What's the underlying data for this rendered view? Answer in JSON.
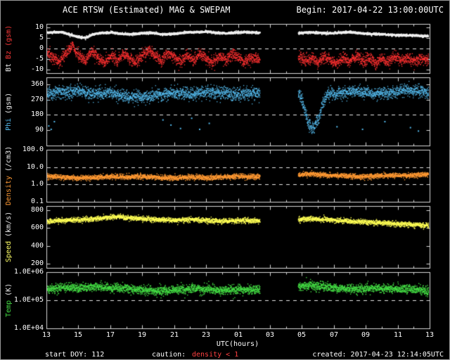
{
  "header": {
    "title": "ACE RTSW (Estimated) MAG & SWEPAM",
    "begin": "Begin: 2017-04-22 13:00:00UTC"
  },
  "footer": {
    "start_doy": "start DOY: 112",
    "caution_label": "caution:",
    "caution_value": "density < 1",
    "created": "created: 2017-04-23 12:14:05UTC"
  },
  "colors": {
    "background": "#000000",
    "frame": "#9a9a9a",
    "axis": "#d8d8d8",
    "dashed": "#e8e8e8",
    "caution": "#ff4040"
  },
  "x_axis": {
    "label": "UTC(hours)",
    "range": [
      13,
      37
    ],
    "gap": [
      26.35,
      28.75
    ],
    "tick_hours": [
      13,
      15,
      17,
      19,
      21,
      23,
      25,
      27,
      29,
      31,
      33,
      35,
      37
    ],
    "tick_labels": [
      "13",
      "15",
      "17",
      "19",
      "21",
      "23",
      "01",
      "03",
      "05",
      "07",
      "09",
      "11",
      "13"
    ]
  },
  "chart_data": [
    {
      "name": "bt-bz",
      "type": "scatter",
      "scale": "linear",
      "yrange": [
        -11.5,
        11.5
      ],
      "yticks": [
        {
          "v": 10,
          "label": "10"
        },
        {
          "v": 5,
          "label": "5"
        },
        {
          "v": 0,
          "label": "0"
        },
        {
          "v": -5,
          "label": "-5"
        },
        {
          "v": -10,
          "label": "-10"
        }
      ],
      "dashed_at": [
        0
      ],
      "ylabel_parts": [
        {
          "text": "Bt",
          "color": "#eeeeee"
        },
        {
          "text": "Bz (gsm)",
          "color": "#ff3838"
        }
      ],
      "series": [
        {
          "name": "Bz",
          "color": "#ff3030",
          "noise": 1.3,
          "size": 1.3,
          "points": [
            [
              13,
              -1.5
            ],
            [
              13.4,
              -4.5
            ],
            [
              13.8,
              -6
            ],
            [
              14.2,
              -2.5
            ],
            [
              14.6,
              1.5
            ],
            [
              15,
              -3
            ],
            [
              15.4,
              -5.5
            ],
            [
              15.8,
              -1
            ],
            [
              16.2,
              -4
            ],
            [
              16.6,
              -6.5
            ],
            [
              17,
              -3
            ],
            [
              17.4,
              -5.5
            ],
            [
              17.8,
              -2
            ],
            [
              18.2,
              -4.5
            ],
            [
              18.6,
              -6
            ],
            [
              19,
              -2.5
            ],
            [
              19.4,
              -0.5
            ],
            [
              19.8,
              -3.5
            ],
            [
              20.2,
              -5.5
            ],
            [
              20.6,
              -2
            ],
            [
              21,
              -4
            ],
            [
              21.4,
              -6
            ],
            [
              21.8,
              -3
            ],
            [
              22.2,
              -5
            ],
            [
              22.6,
              -2
            ],
            [
              23,
              -4.5
            ],
            [
              23.4,
              -6.5
            ],
            [
              23.8,
              -3
            ],
            [
              24.2,
              -5
            ],
            [
              24.6,
              -2.5
            ],
            [
              25,
              -4
            ],
            [
              25.4,
              -6
            ],
            [
              25.8,
              -3.5
            ],
            [
              26.3,
              -5
            ],
            [
              28.8,
              -3.5
            ],
            [
              29.2,
              -6
            ],
            [
              29.6,
              -4
            ],
            [
              30,
              -6.5
            ],
            [
              30.4,
              -3.5
            ],
            [
              30.8,
              -5.5
            ],
            [
              31.2,
              -7
            ],
            [
              31.6,
              -4
            ],
            [
              32,
              -6
            ],
            [
              32.4,
              -3.5
            ],
            [
              32.8,
              -5.5
            ],
            [
              33.2,
              -4
            ],
            [
              33.6,
              -6.5
            ],
            [
              34,
              -4.5
            ],
            [
              34.4,
              -6
            ],
            [
              34.8,
              -3.5
            ],
            [
              35.2,
              -5.5
            ],
            [
              35.6,
              -4
            ],
            [
              36,
              -5.5
            ],
            [
              36.4,
              -4.5
            ],
            [
              36.8,
              -5
            ],
            [
              37,
              -4.5
            ]
          ]
        },
        {
          "name": "Bt",
          "color": "#f0f0f0",
          "noise": 0.25,
          "size": 1.6,
          "points": [
            [
              13,
              7.6
            ],
            [
              13.5,
              7.9
            ],
            [
              14,
              7.8
            ],
            [
              14.4,
              6.8
            ],
            [
              15,
              5.6
            ],
            [
              15.4,
              5.2
            ],
            [
              15.8,
              6.6
            ],
            [
              16.2,
              7.4
            ],
            [
              17,
              7.8
            ],
            [
              17.6,
              7.2
            ],
            [
              18.2,
              6.9
            ],
            [
              19,
              7.4
            ],
            [
              19.6,
              7.6
            ],
            [
              20.2,
              6.9
            ],
            [
              21,
              7.1
            ],
            [
              21.6,
              7.7
            ],
            [
              22.2,
              7.9
            ],
            [
              23,
              8.1
            ],
            [
              23.6,
              7.6
            ],
            [
              24.2,
              7.4
            ],
            [
              25,
              7.7
            ],
            [
              25.6,
              7.9
            ],
            [
              26.3,
              7.6
            ],
            [
              28.8,
              7.4
            ],
            [
              29.4,
              7.9
            ],
            [
              30,
              7.6
            ],
            [
              30.6,
              7.3
            ],
            [
              31.2,
              7.6
            ],
            [
              32,
              7.9
            ],
            [
              32.6,
              7.4
            ],
            [
              33.2,
              7.0
            ],
            [
              34,
              6.9
            ],
            [
              34.6,
              6.6
            ],
            [
              35.2,
              6.5
            ],
            [
              36,
              6.3
            ],
            [
              36.6,
              6.1
            ],
            [
              37,
              6.0
            ]
          ]
        }
      ]
    },
    {
      "name": "phi",
      "type": "scatter",
      "scale": "linear",
      "yrange": [
        0,
        400
      ],
      "yticks": [
        {
          "v": 360,
          "label": "360"
        },
        {
          "v": 270,
          "label": "270"
        },
        {
          "v": 180,
          "label": "180"
        },
        {
          "v": 90,
          "label": "90"
        }
      ],
      "dashed_at": [
        180
      ],
      "ylabel_parts": [
        {
          "text": "Phi",
          "color": "#55bbee"
        },
        {
          "text": "(gsm)",
          "color": "#eeeeee"
        }
      ],
      "series": [
        {
          "name": "Phi",
          "color": "#55bbee",
          "noise": 18,
          "size": 1.3,
          "points": [
            [
              13,
              305
            ],
            [
              14,
              315
            ],
            [
              15,
              320
            ],
            [
              16,
              305
            ],
            [
              17,
              312
            ],
            [
              18,
              295
            ],
            [
              19,
              285
            ],
            [
              20,
              300
            ],
            [
              21,
              312
            ],
            [
              22,
              303
            ],
            [
              23,
              318
            ],
            [
              24,
              310
            ],
            [
              25,
              302
            ],
            [
              26.3,
              310
            ],
            [
              28.8,
              305
            ],
            [
              29.1,
              230
            ],
            [
              29.4,
              130
            ],
            [
              29.7,
              105
            ],
            [
              30,
              150
            ],
            [
              30.3,
              260
            ],
            [
              30.6,
              300
            ],
            [
              31.5,
              312
            ],
            [
              32.5,
              320
            ],
            [
              33.5,
              305
            ],
            [
              34.5,
              312
            ],
            [
              35.5,
              328
            ],
            [
              36.5,
              318
            ],
            [
              37,
              312
            ]
          ]
        },
        {
          "name": "Phi-scattered",
          "color": "#55bbee",
          "mode": "dots",
          "size": 2,
          "points": [
            [
              13.15,
              115
            ],
            [
              13.3,
              95
            ],
            [
              13.5,
              140
            ],
            [
              20.3,
              150
            ],
            [
              20.8,
              120
            ],
            [
              21.4,
              100
            ],
            [
              22.1,
              160
            ],
            [
              22.6,
              95
            ],
            [
              23.2,
              130
            ],
            [
              29.3,
              180
            ],
            [
              29.5,
              150
            ],
            [
              31.2,
              110
            ],
            [
              32.8,
              95
            ],
            [
              34.2,
              140
            ],
            [
              35.8,
              105
            ],
            [
              36.3,
              85
            ]
          ]
        }
      ]
    },
    {
      "name": "density",
      "type": "scatter",
      "scale": "log",
      "yrange": [
        0.1,
        100
      ],
      "yticks": [
        {
          "v": 100,
          "label": "100.0"
        },
        {
          "v": 10,
          "label": "10.0"
        },
        {
          "v": 1,
          "label": "1.0"
        },
        {
          "v": 0.1,
          "label": "0.1"
        }
      ],
      "dashed_at": [
        10,
        1
      ],
      "ylabel_parts": [
        {
          "text": "Density",
          "color": "#ff9933"
        },
        {
          "text": "(/cm3)",
          "color": "#eeeeee"
        }
      ],
      "series": [
        {
          "name": "Density",
          "color": "#ff9933",
          "noise": 0.07,
          "size": 1.4,
          "points": [
            [
              13,
              3.2
            ],
            [
              14,
              2.8
            ],
            [
              15,
              2.5
            ],
            [
              16,
              2.7
            ],
            [
              17,
              3.0
            ],
            [
              18,
              2.8
            ],
            [
              19,
              3.1
            ],
            [
              20,
              2.7
            ],
            [
              21,
              2.5
            ],
            [
              22,
              2.8
            ],
            [
              23,
              2.6
            ],
            [
              24,
              2.9
            ],
            [
              25,
              3.1
            ],
            [
              26.3,
              3.0
            ],
            [
              28.8,
              3.8
            ],
            [
              29.5,
              4.2
            ],
            [
              30.5,
              3.6
            ],
            [
              31.5,
              3.4
            ],
            [
              32.5,
              3.0
            ],
            [
              33.5,
              3.2
            ],
            [
              34.5,
              3.6
            ],
            [
              35.5,
              3.4
            ],
            [
              36.5,
              3.9
            ],
            [
              37,
              4.2
            ]
          ]
        }
      ]
    },
    {
      "name": "speed",
      "type": "scatter",
      "scale": "linear",
      "yrange": [
        150,
        850
      ],
      "yticks": [
        {
          "v": 800,
          "label": "800"
        },
        {
          "v": 600,
          "label": "600"
        },
        {
          "v": 400,
          "label": "400"
        },
        {
          "v": 200,
          "label": "200"
        }
      ],
      "dashed_at": [],
      "ylabel_parts": [
        {
          "text": "Speed",
          "color": "#ffff66"
        },
        {
          "text": "(km/s)",
          "color": "#eeeeee"
        }
      ],
      "series": [
        {
          "name": "Speed",
          "color": "#ffff55",
          "noise": 14,
          "size": 1.4,
          "points": [
            [
              13,
              678
            ],
            [
              14,
              692
            ],
            [
              15,
              700
            ],
            [
              16,
              712
            ],
            [
              17,
              728
            ],
            [
              17.5,
              735
            ],
            [
              18,
              722
            ],
            [
              19,
              712
            ],
            [
              20,
              702
            ],
            [
              21,
              692
            ],
            [
              22,
              703
            ],
            [
              23,
              693
            ],
            [
              24,
              683
            ],
            [
              25,
              690
            ],
            [
              26.3,
              686
            ],
            [
              28.8,
              700
            ],
            [
              29.5,
              712
            ],
            [
              30.5,
              702
            ],
            [
              31.5,
              690
            ],
            [
              32.5,
              678
            ],
            [
              33.5,
              668
            ],
            [
              34.5,
              658
            ],
            [
              35.5,
              648
            ],
            [
              36.5,
              638
            ],
            [
              37,
              630
            ]
          ]
        }
      ]
    },
    {
      "name": "temp",
      "type": "scatter",
      "scale": "log",
      "yrange": [
        10000,
        1000000
      ],
      "yticks": [
        {
          "v": 1000000,
          "label": "1.0E+06"
        },
        {
          "v": 100000,
          "label": "1.0E+05"
        },
        {
          "v": 10000,
          "label": "1.0E+04"
        }
      ],
      "dashed_at": [
        100000
      ],
      "ylabel_parts": [
        {
          "text": "Temp",
          "color": "#44dd44"
        },
        {
          "text": "(K)",
          "color": "#eeeeee"
        }
      ],
      "series": [
        {
          "name": "Temp",
          "color": "#44dd44",
          "noise": 0.08,
          "size": 1.4,
          "points": [
            [
              13,
              260000
            ],
            [
              14,
              300000
            ],
            [
              15,
              280000
            ],
            [
              16,
              320000
            ],
            [
              17,
              290000
            ],
            [
              18,
              260000
            ],
            [
              19,
              240000
            ],
            [
              20,
              220000
            ],
            [
              21,
              240000
            ],
            [
              22,
              270000
            ],
            [
              23,
              250000
            ],
            [
              24,
              230000
            ],
            [
              25,
              250000
            ],
            [
              26.3,
              240000
            ],
            [
              28.8,
              320000
            ],
            [
              29.5,
              350000
            ],
            [
              30.5,
              300000
            ],
            [
              31.5,
              280000
            ],
            [
              32.5,
              260000
            ],
            [
              33.5,
              280000
            ],
            [
              34.5,
              260000
            ],
            [
              35.5,
              270000
            ],
            [
              36.5,
              240000
            ],
            [
              37,
              220000
            ]
          ]
        }
      ]
    }
  ]
}
